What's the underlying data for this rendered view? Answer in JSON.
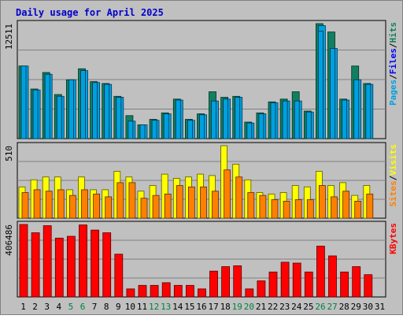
{
  "title": "Daily usage for April 2025",
  "colors": {
    "background": "#c0c0c0",
    "title_text": "#0000cc",
    "hits": "#108060",
    "files": "#00a0e0",
    "pages": "#00a0e0",
    "visits": "#ffff00",
    "sites": "#ff8000",
    "kbytes": "#ff0000",
    "weekend_label": "#008040",
    "weekday_label": "#000000",
    "grid": "#808080"
  },
  "chart_data": [
    {
      "type": "bar",
      "panel": "hits-files-pages",
      "ymax_label": "12511",
      "ylim": [
        0,
        12511
      ],
      "right_labels": [
        "Pages",
        "Files",
        "Hits"
      ],
      "categories": [
        "1",
        "2",
        "3",
        "4",
        "5",
        "6",
        "7",
        "8",
        "9",
        "10",
        "11",
        "12",
        "13",
        "14",
        "15",
        "16",
        "17",
        "18",
        "19",
        "20",
        "21",
        "22",
        "23",
        "24",
        "25",
        "26",
        "27",
        "28",
        "29",
        "30",
        "31"
      ],
      "series": [
        {
          "name": "Hits",
          "values": [
            7900,
            5400,
            7200,
            4800,
            6400,
            7600,
            6200,
            6000,
            4600,
            2500,
            1500,
            2100,
            2800,
            4300,
            2100,
            2700,
            5100,
            4500,
            4600,
            1800,
            2800,
            4000,
            4300,
            5100,
            3000,
            12511,
            11600,
            4300,
            7900,
            6000,
            0
          ]
        },
        {
          "name": "Files",
          "values": [
            7900,
            5300,
            7000,
            4600,
            6400,
            7400,
            6100,
            5900,
            4500,
            1900,
            1500,
            2000,
            2700,
            4200,
            2000,
            2600,
            4100,
            4300,
            4500,
            1700,
            2700,
            3900,
            4100,
            4100,
            2900,
            12300,
            9800,
            4200,
            6400,
            5900,
            0
          ]
        },
        {
          "name": "Pages",
          "values": [
            7900,
            5300,
            7000,
            4600,
            6400,
            7400,
            6100,
            5900,
            4500,
            1900,
            1500,
            2000,
            2700,
            4200,
            2000,
            2600,
            4100,
            4300,
            4500,
            1700,
            2700,
            3900,
            4100,
            4100,
            2900,
            11700,
            9800,
            4200,
            6400,
            5900,
            0
          ]
        }
      ]
    },
    {
      "type": "bar",
      "panel": "visits-sites",
      "ymax_label": "510",
      "ylim": [
        0,
        510
      ],
      "right_labels": [
        "Sites",
        "Visits"
      ],
      "categories": [
        "1",
        "2",
        "3",
        "4",
        "5",
        "6",
        "7",
        "8",
        "9",
        "10",
        "11",
        "12",
        "13",
        "14",
        "15",
        "16",
        "17",
        "18",
        "19",
        "20",
        "21",
        "22",
        "23",
        "24",
        "25",
        "26",
        "27",
        "28",
        "29",
        "30",
        "31"
      ],
      "series": [
        {
          "name": "Visits",
          "values": [
            220,
            270,
            290,
            290,
            200,
            290,
            200,
            200,
            330,
            290,
            190,
            230,
            310,
            280,
            290,
            310,
            300,
            510,
            380,
            270,
            180,
            170,
            180,
            230,
            220,
            330,
            230,
            250,
            160,
            230,
            0
          ]
        },
        {
          "name": "Sites",
          "values": [
            180,
            200,
            190,
            200,
            160,
            200,
            170,
            150,
            250,
            250,
            140,
            160,
            170,
            230,
            220,
            220,
            190,
            340,
            290,
            180,
            160,
            130,
            120,
            130,
            130,
            230,
            150,
            190,
            120,
            170,
            0
          ]
        }
      ]
    },
    {
      "type": "bar",
      "panel": "kbytes",
      "ymax_label": "406486",
      "ylim": [
        0,
        406486
      ],
      "right_labels": [
        "KBytes"
      ],
      "categories": [
        "1",
        "2",
        "3",
        "4",
        "5",
        "6",
        "7",
        "8",
        "9",
        "10",
        "11",
        "12",
        "13",
        "14",
        "15",
        "16",
        "17",
        "18",
        "19",
        "20",
        "21",
        "22",
        "23",
        "24",
        "25",
        "26",
        "27",
        "28",
        "29",
        "30",
        "31"
      ],
      "series": [
        {
          "name": "KBytes",
          "values": [
            406486,
            360000,
            400000,
            330000,
            340000,
            404000,
            375000,
            360000,
            240000,
            45000,
            65000,
            65000,
            80000,
            65000,
            65000,
            45000,
            145000,
            170000,
            175000,
            45000,
            90000,
            140000,
            195000,
            190000,
            140000,
            285000,
            230000,
            140000,
            170000,
            125000,
            0
          ]
        }
      ]
    }
  ],
  "x_labels": [
    "1",
    "2",
    "3",
    "4",
    "5",
    "6",
    "7",
    "8",
    "9",
    "10",
    "11",
    "12",
    "13",
    "14",
    "15",
    "16",
    "17",
    "18",
    "19",
    "20",
    "21",
    "22",
    "23",
    "24",
    "25",
    "26",
    "27",
    "28",
    "29",
    "30",
    "31"
  ],
  "weekend_days": [
    5,
    6,
    12,
    13,
    19,
    20,
    26,
    27
  ]
}
